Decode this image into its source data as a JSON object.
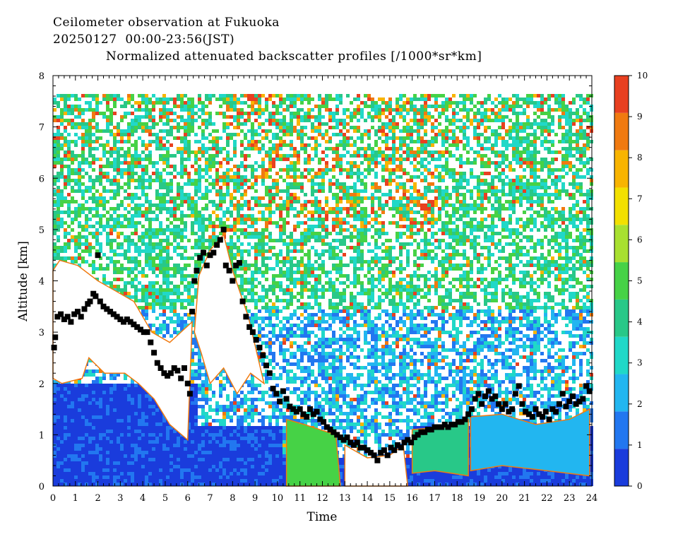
{
  "chart_data": {
    "type": "heatmap",
    "title_lines": [
      "Ceilometer observation at Fukuoka",
      "20250127  00:00-23:56(JST)"
    ],
    "title": "Normalized attenuated backscatter profiles [/1000*sr*km]",
    "xlabel": "Time",
    "ylabel": "Altitude [km]",
    "xlim": [
      0,
      24
    ],
    "ylim": [
      0,
      8
    ],
    "x_ticks": [
      "0",
      "1",
      "2",
      "3",
      "4",
      "5",
      "6",
      "7",
      "8",
      "9",
      "10",
      "11",
      "12",
      "13",
      "14",
      "15",
      "16",
      "17",
      "18",
      "19",
      "20",
      "21",
      "22",
      "23",
      "24"
    ],
    "y_ticks": [
      "0",
      "1",
      "2",
      "3",
      "4",
      "5",
      "6",
      "7",
      "8"
    ],
    "colorbar": {
      "range": [
        0,
        10
      ],
      "ticks": [
        "0",
        "1",
        "2",
        "3",
        "4",
        "5",
        "6",
        "7",
        "8",
        "9",
        "10"
      ],
      "colors": [
        "#1a3cdc",
        "#2277f0",
        "#22b6f0",
        "#20d8c8",
        "#28c888",
        "#46d246",
        "#a8e030",
        "#f2e000",
        "#f8b400",
        "#f07a10",
        "#e84020"
      ]
    },
    "data_top_altitude_km": 7.65,
    "cloud_base_series": {
      "name": "",
      "color": "#000000",
      "marker": "square",
      "points": [
        [
          0.05,
          2.7
        ],
        [
          0.1,
          2.9
        ],
        [
          0.2,
          3.3
        ],
        [
          0.35,
          3.35
        ],
        [
          0.5,
          3.25
        ],
        [
          0.65,
          3.3
        ],
        [
          0.8,
          3.2
        ],
        [
          0.95,
          3.35
        ],
        [
          1.1,
          3.4
        ],
        [
          1.25,
          3.3
        ],
        [
          1.4,
          3.45
        ],
        [
          1.55,
          3.55
        ],
        [
          1.65,
          3.6
        ],
        [
          1.8,
          3.75
        ],
        [
          1.9,
          3.7
        ],
        [
          2.0,
          4.5
        ],
        [
          2.1,
          3.6
        ],
        [
          2.25,
          3.5
        ],
        [
          2.4,
          3.45
        ],
        [
          2.55,
          3.4
        ],
        [
          2.7,
          3.35
        ],
        [
          2.85,
          3.3
        ],
        [
          3.0,
          3.25
        ],
        [
          3.15,
          3.2
        ],
        [
          3.3,
          3.25
        ],
        [
          3.45,
          3.2
        ],
        [
          3.6,
          3.15
        ],
        [
          3.75,
          3.1
        ],
        [
          3.9,
          3.05
        ],
        [
          4.05,
          3.0
        ],
        [
          4.2,
          3.0
        ],
        [
          4.35,
          2.8
        ],
        [
          4.5,
          2.6
        ],
        [
          4.65,
          2.4
        ],
        [
          4.8,
          2.3
        ],
        [
          4.95,
          2.2
        ],
        [
          5.1,
          2.15
        ],
        [
          5.25,
          2.2
        ],
        [
          5.4,
          2.3
        ],
        [
          5.55,
          2.25
        ],
        [
          5.7,
          2.1
        ],
        [
          5.85,
          2.3
        ],
        [
          6.0,
          2.0
        ],
        [
          6.1,
          1.8
        ],
        [
          6.2,
          3.4
        ],
        [
          6.3,
          4.0
        ],
        [
          6.4,
          4.2
        ],
        [
          6.55,
          4.45
        ],
        [
          6.7,
          4.55
        ],
        [
          6.85,
          4.3
        ],
        [
          7.0,
          4.5
        ],
        [
          7.15,
          4.55
        ],
        [
          7.3,
          4.7
        ],
        [
          7.45,
          4.8
        ],
        [
          7.6,
          5.0
        ],
        [
          7.7,
          4.3
        ],
        [
          7.85,
          4.2
        ],
        [
          8.0,
          4.0
        ],
        [
          8.15,
          4.3
        ],
        [
          8.3,
          4.35
        ],
        [
          8.45,
          3.6
        ],
        [
          8.6,
          3.3
        ],
        [
          8.75,
          3.1
        ],
        [
          8.9,
          3.0
        ],
        [
          9.05,
          2.85
        ],
        [
          9.2,
          2.7
        ],
        [
          9.35,
          2.55
        ],
        [
          9.5,
          2.35
        ],
        [
          9.65,
          2.2
        ],
        [
          9.8,
          1.9
        ],
        [
          9.95,
          1.8
        ],
        [
          10.1,
          1.65
        ],
        [
          10.25,
          1.85
        ],
        [
          10.4,
          1.7
        ],
        [
          10.55,
          1.55
        ],
        [
          10.7,
          1.5
        ],
        [
          10.85,
          1.45
        ],
        [
          11.0,
          1.5
        ],
        [
          11.15,
          1.4
        ],
        [
          11.3,
          1.35
        ],
        [
          11.45,
          1.5
        ],
        [
          11.6,
          1.4
        ],
        [
          11.75,
          1.45
        ],
        [
          11.9,
          1.3
        ],
        [
          12.05,
          1.25
        ],
        [
          12.2,
          1.15
        ],
        [
          12.35,
          1.1
        ],
        [
          12.5,
          1.05
        ],
        [
          12.65,
          1.0
        ],
        [
          12.8,
          0.95
        ],
        [
          12.95,
          0.9
        ],
        [
          13.1,
          0.95
        ],
        [
          13.25,
          0.85
        ],
        [
          13.4,
          0.8
        ],
        [
          13.55,
          0.85
        ],
        [
          13.7,
          0.75
        ],
        [
          13.85,
          0.75
        ],
        [
          14.0,
          0.7
        ],
        [
          14.15,
          0.65
        ],
        [
          14.3,
          0.6
        ],
        [
          14.45,
          0.5
        ],
        [
          14.6,
          0.65
        ],
        [
          14.75,
          0.7
        ],
        [
          14.9,
          0.6
        ],
        [
          15.05,
          0.75
        ],
        [
          15.2,
          0.7
        ],
        [
          15.35,
          0.8
        ],
        [
          15.5,
          0.75
        ],
        [
          15.65,
          0.85
        ],
        [
          15.8,
          0.9
        ],
        [
          15.95,
          0.85
        ],
        [
          16.1,
          0.95
        ],
        [
          16.25,
          1.0
        ],
        [
          16.4,
          1.05
        ],
        [
          16.55,
          1.05
        ],
        [
          16.7,
          1.1
        ],
        [
          16.85,
          1.1
        ],
        [
          17.0,
          1.15
        ],
        [
          17.15,
          1.15
        ],
        [
          17.3,
          1.15
        ],
        [
          17.45,
          1.2
        ],
        [
          17.6,
          1.15
        ],
        [
          17.75,
          1.2
        ],
        [
          17.9,
          1.2
        ],
        [
          18.05,
          1.25
        ],
        [
          18.2,
          1.25
        ],
        [
          18.35,
          1.3
        ],
        [
          18.5,
          1.4
        ],
        [
          18.65,
          1.5
        ],
        [
          18.8,
          1.7
        ],
        [
          18.95,
          1.8
        ],
        [
          19.1,
          1.6
        ],
        [
          19.25,
          1.75
        ],
        [
          19.4,
          1.85
        ],
        [
          19.55,
          1.7
        ],
        [
          19.7,
          1.75
        ],
        [
          19.85,
          1.6
        ],
        [
          20.0,
          1.5
        ],
        [
          20.15,
          1.6
        ],
        [
          20.3,
          1.45
        ],
        [
          20.45,
          1.5
        ],
        [
          20.6,
          1.8
        ],
        [
          20.75,
          1.95
        ],
        [
          20.9,
          1.6
        ],
        [
          21.05,
          1.45
        ],
        [
          21.2,
          1.4
        ],
        [
          21.35,
          1.35
        ],
        [
          21.5,
          1.5
        ],
        [
          21.65,
          1.4
        ],
        [
          21.8,
          1.35
        ],
        [
          21.95,
          1.45
        ],
        [
          22.1,
          1.3
        ],
        [
          22.25,
          1.5
        ],
        [
          22.4,
          1.45
        ],
        [
          22.55,
          1.6
        ],
        [
          22.7,
          1.8
        ],
        [
          22.85,
          1.55
        ],
        [
          23.0,
          1.65
        ],
        [
          23.15,
          1.75
        ],
        [
          23.3,
          1.6
        ],
        [
          23.45,
          1.65
        ],
        [
          23.6,
          1.7
        ],
        [
          23.75,
          1.95
        ],
        [
          23.9,
          1.85
        ]
      ]
    }
  }
}
